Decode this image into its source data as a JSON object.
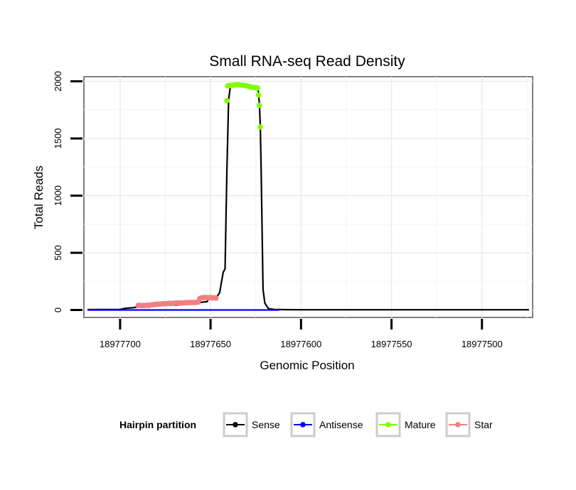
{
  "chart_data": {
    "type": "line",
    "title": "Small RNA-seq Read Density",
    "xlabel": "Genomic Position",
    "ylabel": "Total Reads",
    "x_reversed": true,
    "xlim": [
      18977720,
      18977472
    ],
    "ylim": [
      -65,
      2040
    ],
    "x_ticks": [
      18977700,
      18977650,
      18977600,
      18977550,
      18977500
    ],
    "x_tick_labels": [
      "18977700",
      "18977650",
      "18977600",
      "18977550",
      "18977500"
    ],
    "y_ticks": [
      0,
      500,
      1000,
      1500,
      2000
    ],
    "y_tick_labels": [
      "0",
      "500",
      "1000",
      "1500",
      "2000"
    ],
    "grid": true,
    "legend": {
      "title": "Hairpin partition",
      "position": "bottom",
      "entries": [
        {
          "name": "Sense",
          "color": "#000000"
        },
        {
          "name": "Antisense",
          "color": "#0000ff"
        },
        {
          "name": "Mature",
          "color": "#7fff00"
        },
        {
          "name": "Star",
          "color": "#f08080"
        }
      ]
    },
    "series": [
      {
        "name": "Sense",
        "color": "#000000",
        "style": "line",
        "x": [
          18977718,
          18977712,
          18977706,
          18977700,
          18977697,
          18977693,
          18977690,
          18977686,
          18977683,
          18977680,
          18977678,
          18977675,
          18977672,
          18977669,
          18977665,
          18977662,
          18977659,
          18977656,
          18977654,
          18977652,
          18977651,
          18977650,
          18977649,
          18977647,
          18977645,
          18977643,
          18977642,
          18977641,
          18977640,
          18977639,
          18977638.5,
          18977638,
          18977637,
          18977636,
          18977635,
          18977634,
          18977633,
          18977631,
          18977629,
          18977627,
          18977625,
          18977624,
          18977623.5,
          18977623,
          18977622.5,
          18977622,
          18977621,
          18977620,
          18977618,
          18977615,
          18977610,
          18977600,
          18977550,
          18977500,
          18977474
        ],
        "y": [
          3,
          4,
          4,
          5,
          15,
          20,
          27,
          28,
          30,
          45,
          47,
          47,
          45,
          42,
          48,
          55,
          60,
          65,
          70,
          72,
          95,
          110,
          108,
          106,
          150,
          330,
          360,
          1200,
          1840,
          1960,
          1970,
          1972,
          1975,
          1978,
          1980,
          1978,
          1975,
          1965,
          1960,
          1955,
          1950,
          1940,
          1900,
          1800,
          1600,
          1200,
          180,
          60,
          12,
          5,
          3,
          2,
          2,
          2,
          2
        ]
      },
      {
        "name": "Antisense",
        "color": "#0000ff",
        "style": "line",
        "x": [
          18977718,
          18977612
        ],
        "y": [
          0,
          0
        ]
      },
      {
        "name": "Mature",
        "color": "#7fff00",
        "style": "points",
        "x": [
          18977641,
          18977640.5,
          18977640,
          18977639,
          18977638,
          18977637,
          18977636,
          18977635,
          18977634,
          18977633,
          18977632,
          18977631,
          18977630,
          18977629,
          18977628,
          18977627,
          18977626,
          18977625,
          18977624,
          18977623.5,
          18977623,
          18977622.5
        ],
        "y": [
          1830,
          1960,
          1962,
          1963,
          1965,
          1967,
          1969,
          1970,
          1969,
          1967,
          1965,
          1963,
          1960,
          1955,
          1950,
          1948,
          1946,
          1944,
          1940,
          1880,
          1790,
          1600
        ]
      },
      {
        "name": "Star",
        "color": "#f08080",
        "style": "points",
        "x": [
          18977690,
          18977689,
          18977688,
          18977687,
          18977686,
          18977685,
          18977684,
          18977683,
          18977682,
          18977681,
          18977680,
          18977679,
          18977678,
          18977677,
          18977676,
          18977675,
          18977674,
          18977673,
          18977672,
          18977671,
          18977670,
          18977669,
          18977668,
          18977667,
          18977666,
          18977665,
          18977664,
          18977663,
          18977662,
          18977661,
          18977660,
          18977659,
          18977658,
          18977657,
          18977656,
          18977655,
          18977654,
          18977653,
          18977652,
          18977651,
          18977650,
          18977649,
          18977648,
          18977647
        ],
        "y": [
          40,
          41,
          38,
          40,
          39,
          42,
          40,
          45,
          46,
          48,
          50,
          52,
          51,
          53,
          55,
          54,
          56,
          58,
          57,
          59,
          60,
          62,
          61,
          60,
          63,
          62,
          64,
          65,
          64,
          66,
          65,
          66,
          67,
          68,
          100,
          106,
          108,
          110,
          108,
          107,
          109,
          105,
          108,
          104
        ]
      }
    ]
  }
}
